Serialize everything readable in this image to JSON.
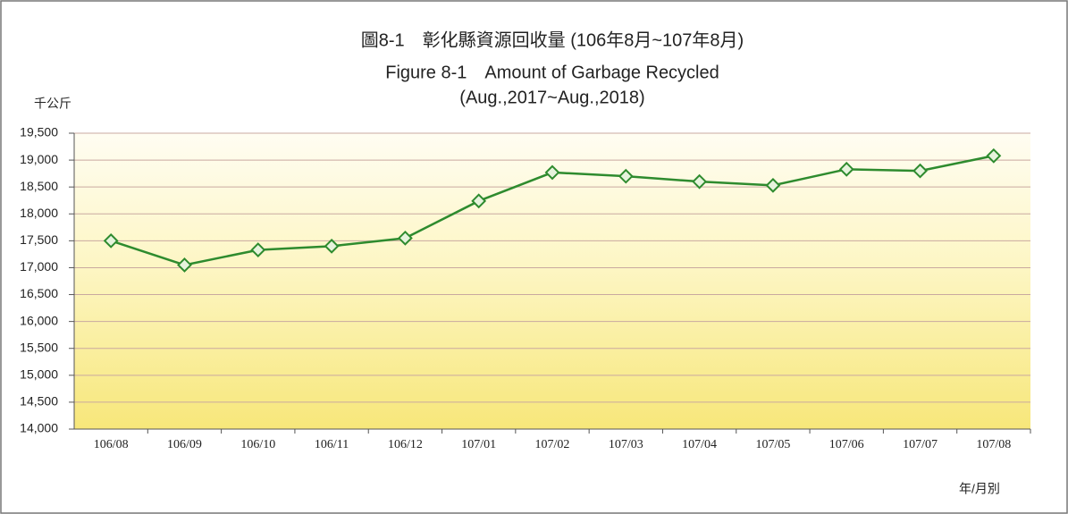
{
  "chart_data": {
    "type": "line",
    "title": "圖8-1　彰化縣資源回收量 (106年8月~107年8月)",
    "subtitle": "Figure 8-1　Amount of Garbage Recycled",
    "subtitle2": "(Aug.,2017~Aug.,2018)",
    "y_label": "千公斤",
    "x_label": "年/月別",
    "categories": [
      "106/08",
      "106/09",
      "106/10",
      "106/11",
      "106/12",
      "107/01",
      "107/02",
      "107/03",
      "107/04",
      "107/05",
      "107/06",
      "107/07",
      "107/08"
    ],
    "series": [
      {
        "name": "資源回收量",
        "color": "#2e8b2e",
        "values": [
          17500,
          17050,
          17330,
          17400,
          17550,
          18240,
          18770,
          18700,
          18600,
          18530,
          18830,
          18800,
          19080
        ]
      }
    ],
    "ylim": [
      14000,
      19500
    ],
    "yticks": [
      {
        "value": 14000,
        "label": "14,000"
      },
      {
        "value": 14500,
        "label": "14,500"
      },
      {
        "value": 15000,
        "label": "15,000"
      },
      {
        "value": 15500,
        "label": "15,500"
      },
      {
        "value": 16000,
        "label": "16,000"
      },
      {
        "value": 16500,
        "label": "16,500"
      },
      {
        "value": 17000,
        "label": "17,000"
      },
      {
        "value": 17500,
        "label": "17,500"
      },
      {
        "value": 18000,
        "label": "18,000"
      },
      {
        "value": 18500,
        "label": "18,500"
      },
      {
        "value": 19000,
        "label": "19,000"
      },
      {
        "value": 19500,
        "label": "19,500"
      }
    ],
    "grid": true
  }
}
